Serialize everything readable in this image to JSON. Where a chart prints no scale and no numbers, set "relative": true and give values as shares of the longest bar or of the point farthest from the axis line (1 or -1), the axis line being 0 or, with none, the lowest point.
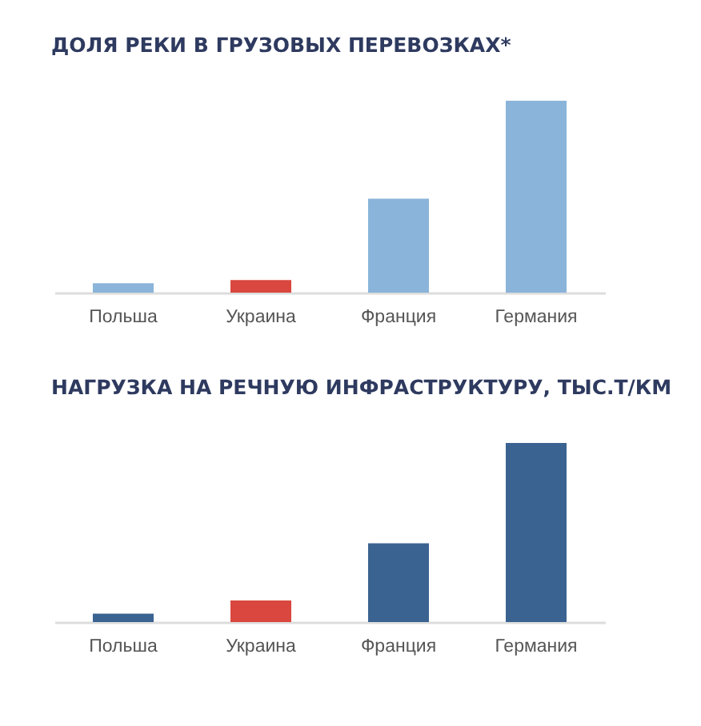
{
  "chart_data": [
    {
      "type": "bar",
      "title": "ДОЛЯ РЕКИ В ГРУЗОВЫХ ПЕРЕВОЗКАХ*",
      "categories": [
        "Польша",
        "Украина",
        "Франция",
        "Германия"
      ],
      "values": [
        0.049,
        0.066,
        0.49,
        1
      ],
      "colors": [
        "#8ab4d9",
        "#d9473f",
        "#8ab4d9",
        "#8ab4d9"
      ],
      "relative": true
    },
    {
      "type": "bar",
      "title": "НАГРУЗКА НА РЕЧНУЮ ИНФРАСТРУКТУРУ, ТЫС.Т/КМ",
      "categories": [
        "Польша",
        "Украина",
        "Франция",
        "Германия"
      ],
      "values": [
        0.047,
        0.12,
        0.44,
        1
      ],
      "colors": [
        "#3b6391",
        "#d9473f",
        "#3b6391",
        "#3b6391"
      ],
      "relative": true
    }
  ]
}
